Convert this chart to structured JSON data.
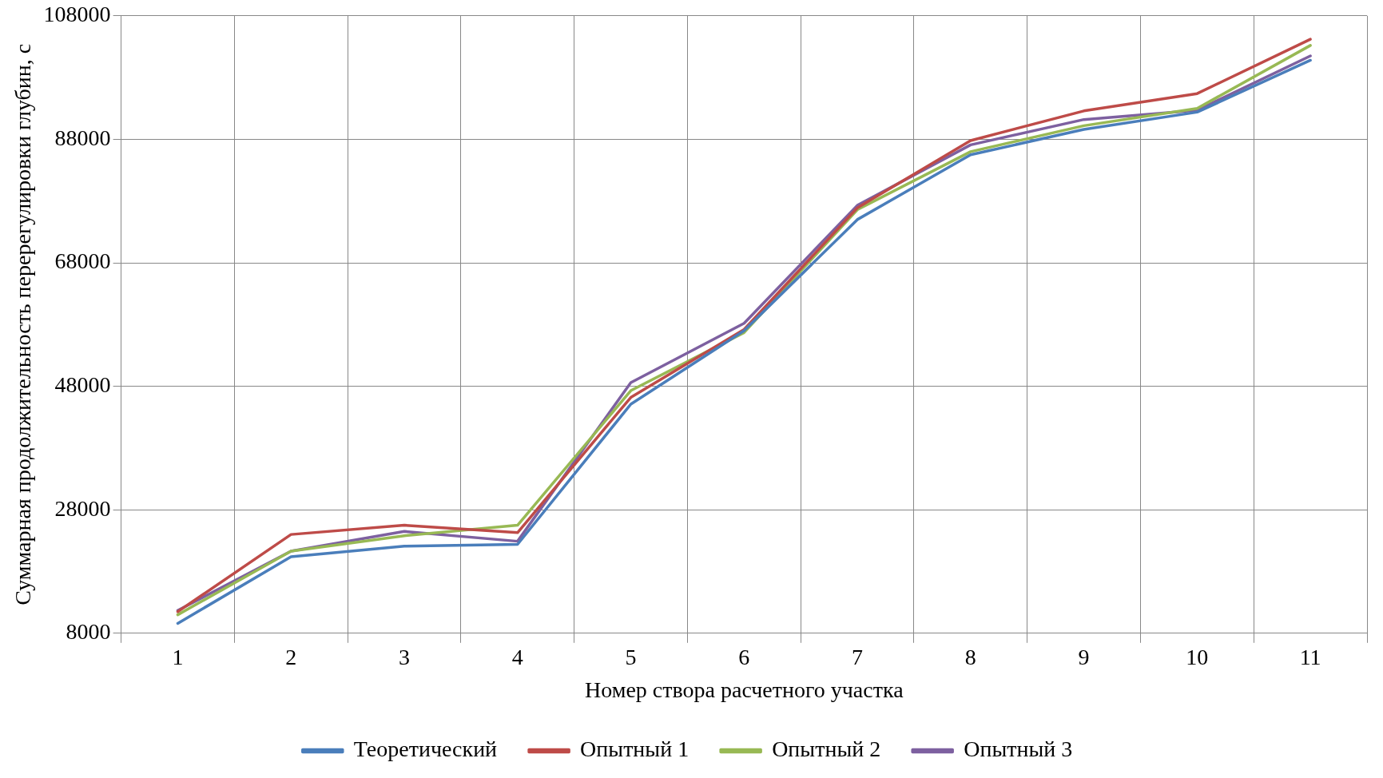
{
  "chart_data": {
    "type": "line",
    "xlabel": "Номер створа расчетного участка",
    "ylabel": "Суммарная продолжительность перерегулировки глубин, с",
    "categories": [
      "1",
      "2",
      "3",
      "4",
      "5",
      "6",
      "7",
      "8",
      "9",
      "10",
      "11"
    ],
    "series": [
      {
        "name": "Теоретический",
        "color": "#4a7ebb",
        "values": [
          9600,
          20400,
          22100,
          22400,
          45100,
          57000,
          75000,
          85500,
          89600,
          92400,
          100800
        ]
      },
      {
        "name": "Опытный 1",
        "color": "#be4b48",
        "values": [
          11500,
          24000,
          25500,
          24300,
          46200,
          57200,
          76900,
          87800,
          92600,
          95400,
          104200
        ]
      },
      {
        "name": "Опытный 2",
        "color": "#98b954",
        "values": [
          11000,
          21300,
          23800,
          25500,
          47300,
          56700,
          76600,
          86000,
          90200,
          93000,
          103200
        ]
      },
      {
        "name": "Опытный 3",
        "color": "#7d60a0",
        "values": [
          11700,
          21300,
          24500,
          22900,
          48600,
          58200,
          77300,
          87100,
          91200,
          92700,
          101500
        ]
      }
    ],
    "ylim": [
      8000,
      108000
    ],
    "yticks": [
      8000,
      28000,
      48000,
      68000,
      88000,
      108000
    ],
    "grid": true,
    "legend": "bottom",
    "marker": "none",
    "line_style": "solid"
  }
}
